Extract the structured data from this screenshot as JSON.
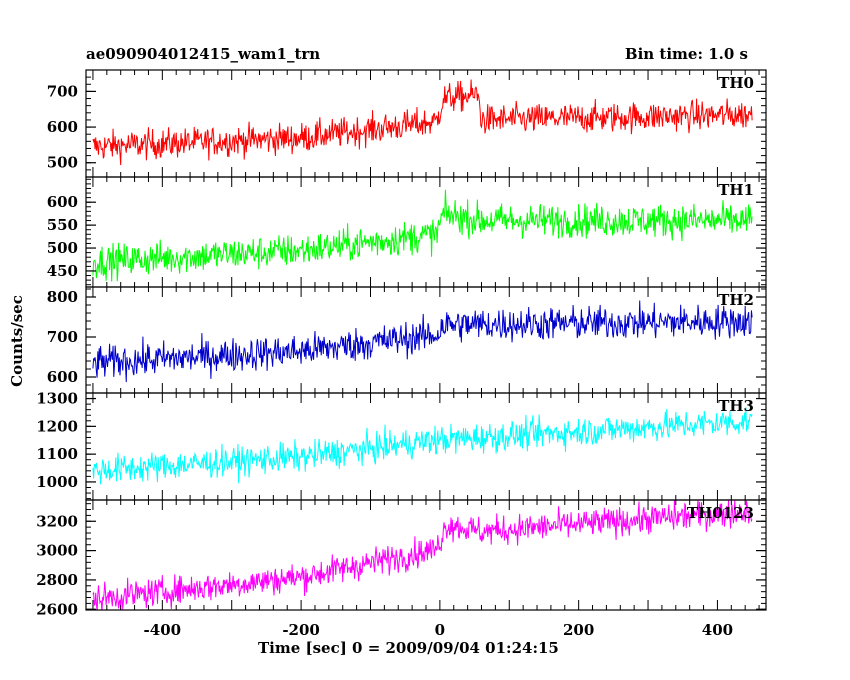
{
  "title_left": "ae090904012415_wam1_trn",
  "title_right": "Bin time: 1.0 s",
  "xlabel": "Time [sec] 0 = 2009/09/04 01:24:15",
  "ylabel": "Counts/sec",
  "colors": {
    "TH0": "#ff0000",
    "TH1": "#00ff00",
    "TH2": "#0000cc",
    "TH3": "#00ffff",
    "TH0123": "#ff00ff"
  },
  "chart_data": {
    "type": "line",
    "xlim": [
      -510,
      470
    ],
    "x_ticks": [
      -400,
      -200,
      0,
      200,
      400
    ],
    "x_range_data": [
      -500,
      450
    ],
    "bin_seconds": 1.0,
    "panels": [
      {
        "name": "TH0",
        "color": "#ff0000",
        "ylim": [
          460,
          760
        ],
        "yticks": [
          500,
          600,
          700
        ],
        "trend": [
          [
            -500,
            545
          ],
          [
            -200,
            570
          ],
          [
            -5,
            615
          ],
          [
            5,
            680
          ],
          [
            55,
            690
          ],
          [
            60,
            620
          ],
          [
            450,
            635
          ]
        ],
        "noise": 30
      },
      {
        "name": "TH1",
        "color": "#00ff00",
        "ylim": [
          415,
          655
        ],
        "yticks": [
          450,
          500,
          550,
          600
        ],
        "trend": [
          [
            -500,
            470
          ],
          [
            -200,
            495
          ],
          [
            -5,
            530
          ],
          [
            5,
            575
          ],
          [
            60,
            560
          ],
          [
            450,
            560
          ]
        ],
        "noise": 26
      },
      {
        "name": "TH2",
        "color": "#0000cc",
        "ylim": [
          560,
          825
        ],
        "yticks": [
          600,
          700,
          800
        ],
        "trend": [
          [
            -500,
            635
          ],
          [
            -200,
            665
          ],
          [
            -5,
            705
          ],
          [
            5,
            730
          ],
          [
            450,
            740
          ]
        ],
        "noise": 30
      },
      {
        "name": "TH3",
        "color": "#00ffff",
        "ylim": [
          935,
          1320
        ],
        "yticks": [
          1000,
          1100,
          1200,
          1300
        ],
        "trend": [
          [
            -500,
            1040
          ],
          [
            -200,
            1090
          ],
          [
            -5,
            1150
          ],
          [
            450,
            1220
          ]
        ],
        "noise": 38
      },
      {
        "name": "TH0123",
        "color": "#ff00ff",
        "ylim": [
          2595,
          3345
        ],
        "yticks": [
          2600,
          2800,
          3000,
          3200
        ],
        "trend": [
          [
            -500,
            2670
          ],
          [
            -200,
            2820
          ],
          [
            -5,
            3010
          ],
          [
            10,
            3180
          ],
          [
            60,
            3130
          ],
          [
            450,
            3270
          ]
        ],
        "noise": 70
      }
    ]
  }
}
